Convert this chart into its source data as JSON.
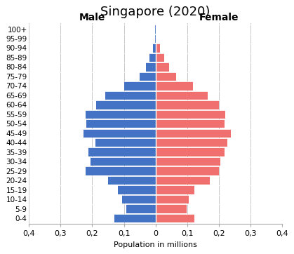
{
  "title": "Singapore (2020)",
  "xlabel": "Population in millions",
  "male_label": "Male",
  "female_label": "Female",
  "age_groups": [
    "100+",
    "95-99",
    "90-94",
    "85-89",
    "80-84",
    "75-79",
    "70-74",
    "65-69",
    "60-64",
    "55-59",
    "50-54",
    "45-49",
    "40-44",
    "35-39",
    "30-34",
    "25-29",
    "20-24",
    "15-19",
    "10-14",
    "5-9",
    "0-4"
  ],
  "male_values": [
    0.001,
    0.002,
    0.008,
    0.018,
    0.03,
    0.05,
    0.1,
    0.158,
    0.188,
    0.222,
    0.218,
    0.228,
    0.19,
    0.212,
    0.205,
    0.222,
    0.15,
    0.118,
    0.105,
    0.092,
    0.13
  ],
  "female_values": [
    0.003,
    0.004,
    0.015,
    0.028,
    0.043,
    0.065,
    0.118,
    0.165,
    0.2,
    0.22,
    0.218,
    0.238,
    0.228,
    0.218,
    0.205,
    0.2,
    0.172,
    0.122,
    0.105,
    0.098,
    0.122
  ],
  "male_color": "#4472c4",
  "female_color": "#f07070",
  "xlim": 0.4,
  "xtick_labels": [
    "0,4",
    "0,3",
    "0,2",
    "0,1",
    "0",
    "0,1",
    "0,2",
    "0,3",
    "0,4"
  ],
  "xtick_vals": [
    -0.4,
    -0.3,
    -0.2,
    -0.1,
    0.0,
    0.1,
    0.2,
    0.3,
    0.4
  ],
  "background_color": "#ffffff",
  "grid_color": "#c8c8c8",
  "title_fontsize": 13,
  "label_fontsize": 8,
  "ytick_fontsize": 7.5,
  "xtick_fontsize": 8,
  "bar_height": 0.92
}
